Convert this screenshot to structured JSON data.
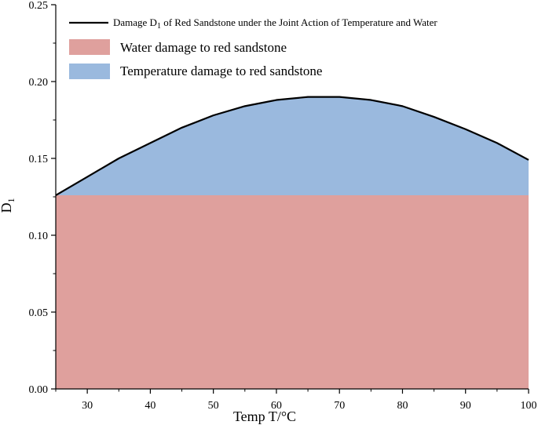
{
  "chart_data": {
    "type": "area",
    "xlabel": "Temp T/°C",
    "ylabel_main": "D",
    "ylabel_sub": "1",
    "xlim": [
      25,
      100
    ],
    "ylim": [
      0,
      0.25
    ],
    "xticks": [
      30,
      40,
      50,
      60,
      70,
      80,
      90,
      100
    ],
    "xtick_labels": [
      "30",
      "40",
      "50",
      "60",
      "70",
      "80",
      "90",
      "100"
    ],
    "yticks": [
      0,
      0.05,
      0.1,
      0.15,
      0.2,
      0.25
    ],
    "ytick_labels": [
      "0.00",
      "0.05",
      "0.10",
      "0.15",
      "0.20",
      "0.25"
    ],
    "grid": false,
    "legend_position": "top-left",
    "x": [
      25,
      30,
      35,
      40,
      45,
      50,
      55,
      60,
      65,
      70,
      75,
      80,
      85,
      90,
      95,
      100
    ],
    "series": [
      {
        "name": "Water damage to red sandstone",
        "color": "#dfa09d",
        "values": [
          0.126,
          0.126,
          0.126,
          0.126,
          0.126,
          0.126,
          0.126,
          0.126,
          0.126,
          0.126,
          0.126,
          0.126,
          0.126,
          0.126,
          0.126,
          0.126
        ]
      },
      {
        "name": "Temperature damage to red sandstone",
        "color": "#9ab9de",
        "values": [
          0.0,
          0.012,
          0.024,
          0.034,
          0.044,
          0.052,
          0.058,
          0.062,
          0.064,
          0.064,
          0.062,
          0.058,
          0.051,
          0.043,
          0.034,
          0.023
        ]
      }
    ],
    "line": {
      "name_main": "Damage D",
      "name_sub": "1",
      "name_rest": " of Red Sandstone under the Joint Action of Temperature and Water",
      "color": "#000000",
      "values": [
        0.126,
        0.138,
        0.15,
        0.16,
        0.17,
        0.178,
        0.184,
        0.188,
        0.19,
        0.19,
        0.188,
        0.184,
        0.177,
        0.169,
        0.16,
        0.149
      ]
    }
  }
}
